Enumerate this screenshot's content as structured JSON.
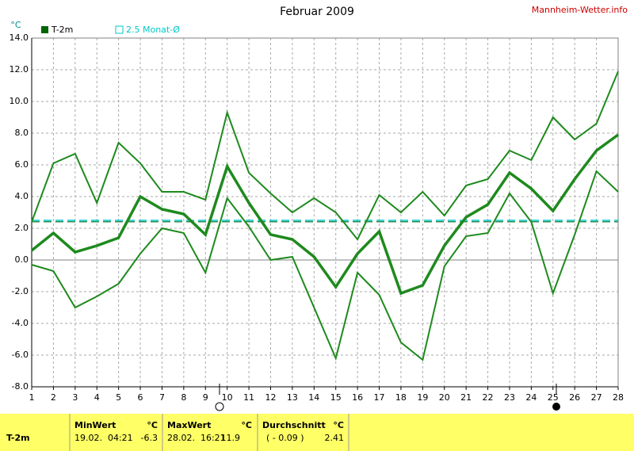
{
  "chart_data": {
    "type": "line",
    "title": "Februar 2009",
    "source": "Mannheim-Wetter.info",
    "ylabel": "°C",
    "x": [
      1,
      2,
      3,
      4,
      5,
      6,
      7,
      8,
      9,
      10,
      11,
      12,
      13,
      14,
      15,
      16,
      17,
      18,
      19,
      20,
      21,
      22,
      23,
      24,
      25,
      26,
      27,
      28
    ],
    "xlim": [
      1,
      28
    ],
    "ylim": [
      -8,
      14
    ],
    "yticks": [
      {
        "value": -8,
        "label": "-8.0"
      },
      {
        "value": -6,
        "label": "-6.0"
      },
      {
        "value": -4,
        "label": "-4.0"
      },
      {
        "value": -2,
        "label": "-2.0"
      },
      {
        "value": 0,
        "label": "0.0"
      },
      {
        "value": 2,
        "label": "2.0"
      },
      {
        "value": 4,
        "label": "4.0"
      },
      {
        "value": 6,
        "label": "6.0"
      },
      {
        "value": 8,
        "label": "8.0"
      },
      {
        "value": 10,
        "label": "10.0"
      },
      {
        "value": 12,
        "label": "12.0"
      },
      {
        "value": 14,
        "label": "14.0"
      }
    ],
    "grid": true,
    "series": [
      {
        "color": "#1e8a1e",
        "width": 2,
        "values": [
          2.4,
          6.1,
          6.7,
          3.6,
          7.4,
          6.1,
          4.3,
          4.3,
          3.8,
          9.3,
          5.5,
          4.2,
          3.0,
          3.9,
          3.0,
          1.3,
          4.1,
          3.0,
          4.3,
          2.8,
          4.7,
          5.1,
          6.9,
          6.3,
          9.0,
          7.6,
          8.6,
          11.9
        ]
      },
      {
        "color": "#1e8a1e",
        "width": 3.5,
        "values": [
          0.6,
          1.7,
          0.5,
          0.9,
          1.4,
          4.0,
          3.2,
          2.9,
          1.6,
          5.9,
          3.6,
          1.6,
          1.3,
          0.2,
          -1.7,
          0.4,
          1.8,
          -2.1,
          -1.6,
          0.9,
          2.7,
          3.5,
          5.5,
          4.5,
          3.1,
          5.1,
          6.9,
          7.9
        ]
      },
      {
        "color": "#1e8a1e",
        "width": 2,
        "values": [
          -0.3,
          -0.7,
          -3.0,
          -2.3,
          -1.5,
          0.4,
          2.0,
          1.7,
          -0.8,
          3.9,
          2.1,
          0.0,
          0.2,
          -3.0,
          -6.2,
          -0.8,
          -2.2,
          -5.2,
          -6.3,
          -0.4,
          1.5,
          1.7,
          4.2,
          2.4,
          -2.1,
          1.6,
          5.6,
          4.3
        ]
      }
    ],
    "reference_lines": [
      {
        "value": 2.5,
        "color": "#00c8c8"
      },
      {
        "value": 2.41,
        "color": "#2e8b57"
      }
    ],
    "legend": [
      {
        "label": "T-2m",
        "color": "#006400"
      },
      {
        "label": "2.5 Monat-Ø",
        "color": "#00c8c8"
      }
    ]
  },
  "table": {
    "row_label": "T-2m",
    "headers": [
      [
        "MinWert",
        "°C"
      ],
      [
        "MaxWert",
        "°C"
      ],
      [
        "Durchschnitt",
        "°C"
      ]
    ],
    "cells": [
      [
        "19.02.  04:21",
        "-6.3"
      ],
      [
        "28.02.  16:21",
        "11.9"
      ],
      [
        "( - 0.09 )",
        "2.41"
      ]
    ]
  }
}
